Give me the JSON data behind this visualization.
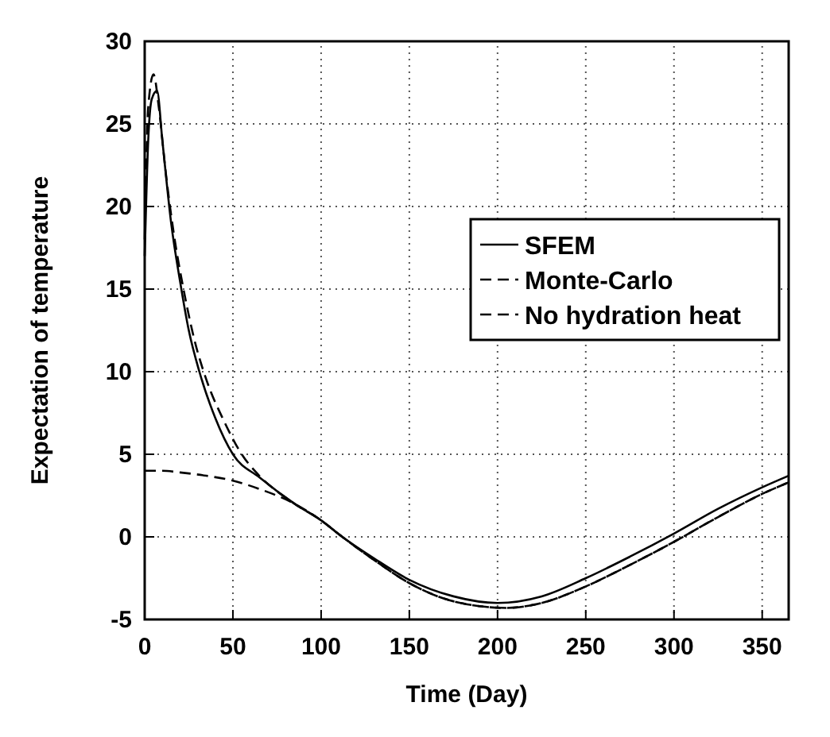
{
  "chart_data": {
    "type": "line",
    "xlabel": "Time (Day)",
    "ylabel": "Expectation of temperature",
    "xlim": [
      0,
      365
    ],
    "ylim": [
      -5,
      30
    ],
    "xticks": [
      0,
      50,
      100,
      150,
      200,
      250,
      300,
      350
    ],
    "yticks": [
      -5,
      0,
      5,
      10,
      15,
      20,
      25,
      30
    ],
    "grid": true,
    "legend": "right",
    "series": [
      {
        "name": "SFEM",
        "color": "#000000",
        "line_style": "solid",
        "x": [
          0,
          2,
          4,
          7,
          10,
          15,
          20,
          25,
          31,
          40,
          50,
          65,
          85,
          100,
          112,
          130,
          150,
          175,
          200,
          225,
          250,
          275,
          300,
          325,
          350,
          365
        ],
        "values": [
          17,
          24,
          26.5,
          27,
          24,
          19,
          15.5,
          12.5,
          10,
          7.2,
          5,
          3.6,
          2,
          1,
          0,
          -1.3,
          -2.6,
          -3.6,
          -4,
          -3.6,
          -2.5,
          -1.2,
          0.2,
          1.7,
          3,
          3.7
        ]
      },
      {
        "name": "Monte-Carlo",
        "color": "#000000",
        "line_style": "dashed",
        "x": [
          0,
          2,
          5,
          8,
          12,
          17,
          22,
          28,
          35,
          45,
          55,
          65,
          85,
          100,
          112,
          130,
          150,
          175,
          205,
          225,
          250,
          275,
          300,
          325,
          350,
          365
        ],
        "values": [
          18,
          26,
          28,
          26,
          22,
          18,
          15,
          12,
          9.5,
          7,
          5,
          3.7,
          2,
          1,
          0,
          -1.4,
          -2.8,
          -3.9,
          -4.3,
          -4,
          -3,
          -1.7,
          -0.3,
          1.2,
          2.6,
          3.3
        ]
      },
      {
        "name": "No hydration heat",
        "color": "#000000",
        "line_style": "dashed",
        "x": [
          0,
          10,
          20,
          35,
          50,
          65,
          85,
          100,
          112,
          130,
          150,
          175,
          205,
          225,
          250,
          275,
          300,
          325,
          350,
          365
        ],
        "values": [
          4,
          4,
          3.9,
          3.7,
          3.4,
          2.9,
          2,
          1,
          0,
          -1.4,
          -2.8,
          -3.9,
          -4.3,
          -4,
          -3,
          -1.7,
          -0.3,
          1.2,
          2.6,
          3.3
        ]
      }
    ]
  }
}
